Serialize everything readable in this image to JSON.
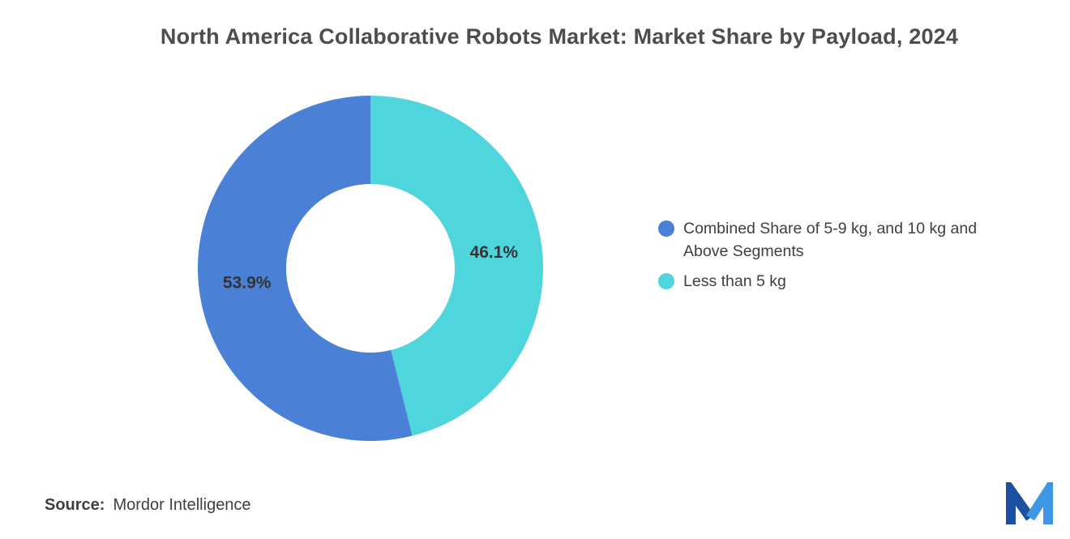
{
  "title": "North America Collaborative Robots Market: Market Share by Payload, 2024",
  "source": {
    "label": "Source:",
    "value": "Mordor Intelligence"
  },
  "chart_data": {
    "type": "pie",
    "donut": true,
    "title": "North America Collaborative Robots Market: Market Share by Payload, 2024",
    "hole_ratio": 0.49,
    "start_angle": "top",
    "direction": "clockwise",
    "legend_position": "right",
    "label_color": "#343437",
    "slices": [
      {
        "label": "Combined Share of 5-9 kg, and 10 kg and Above Segments",
        "value": 53.9,
        "display_label": "53.9%",
        "color": "#4A80D5"
      },
      {
        "label": "Less than 5 kg",
        "value": 46.1,
        "display_label": "46.1%",
        "color": "#4FD5DC"
      }
    ]
  },
  "logo": {
    "name": "Mordor Intelligence",
    "colors": {
      "dark": "#1C4FA1",
      "light": "#3E97E5"
    }
  }
}
